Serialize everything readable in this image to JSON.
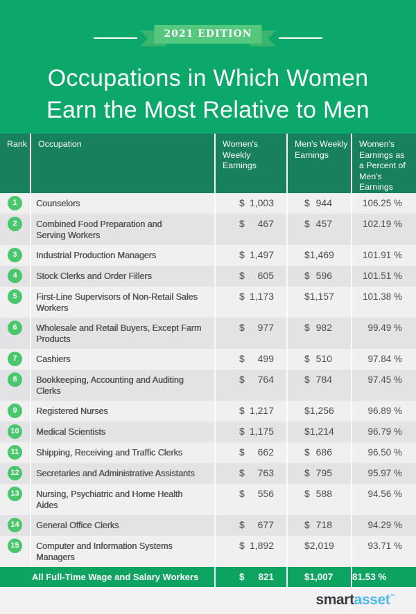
{
  "colors": {
    "background_green": "#0ca76a",
    "table_header_green": "#17805d",
    "summary_row_green": "#0da361",
    "rank_badge_green": "#4ac66d",
    "ribbon_box_green": "#56c87e",
    "ribbon_tail_green": "#3bb56e",
    "row_light_gray": "#f0f0f1",
    "row_dark_gray": "#e3e3e5",
    "logo_blue": "#54b9ea"
  },
  "banner": {
    "edition_label": "2021 EDITION"
  },
  "title": {
    "line1": "Occupations in Which Women",
    "line2": "Earn the Most Relative to Men"
  },
  "table": {
    "currency_symbol": "$",
    "columns": {
      "rank": "Rank",
      "occupation": "Occupation",
      "women": "Women's Weekly\nEarnings",
      "men": "Men's Weekly\nEarnings",
      "percent": "Women's\nEarnings as\na Percent of\nMen's Earnings"
    },
    "rows": [
      {
        "rank": "1",
        "occupation": "Counselors",
        "women": "1,003",
        "men": "944",
        "percent": "106.25 %"
      },
      {
        "rank": "2",
        "occupation": "Combined Food Preparation and\nServing Workers",
        "women": "467",
        "men": "457",
        "percent": "102.19 %"
      },
      {
        "rank": "3",
        "occupation": "Industrial Production Managers",
        "women": "1,497",
        "men": "1,469",
        "percent": "101.91 %"
      },
      {
        "rank": "4",
        "occupation": "Stock Clerks and Order Fillers",
        "women": "605",
        "men": "596",
        "percent": "101.51 %"
      },
      {
        "rank": "5",
        "occupation": "First-Line Supervisors of Non-Retail Sales\nWorkers",
        "women": "1,173",
        "men": "1,157",
        "percent": "101.38 %"
      },
      {
        "rank": "6",
        "occupation": "Wholesale and Retail Buyers, Except Farm\nProducts",
        "women": "977",
        "men": "982",
        "percent": "99.49 %"
      },
      {
        "rank": "7",
        "occupation": "Cashiers",
        "women": "499",
        "men": "510",
        "percent": "97.84 %"
      },
      {
        "rank": "8",
        "occupation": "Bookkeeping, Accounting and Auditing\nClerks",
        "women": "764",
        "men": "784",
        "percent": "97.45 %"
      },
      {
        "rank": "9",
        "occupation": "Registered Nurses",
        "women": "1,217",
        "men": "1,256",
        "percent": "96.89 %"
      },
      {
        "rank": "10",
        "occupation": "Medical Scientists",
        "women": "1,175",
        "men": "1,214",
        "percent": "96.79 %"
      },
      {
        "rank": "11",
        "occupation": "Shipping, Receiving and Traffic Clerks",
        "women": "662",
        "men": "686",
        "percent": "96.50 %"
      },
      {
        "rank": "12",
        "occupation": "Secretaries and Administrative Assistants",
        "women": "763",
        "men": "795",
        "percent": "95.97 %"
      },
      {
        "rank": "13",
        "occupation": "Nursing, Psychiatric and Home Health\nAides",
        "women": "556",
        "men": "588",
        "percent": "94.56 %"
      },
      {
        "rank": "14",
        "occupation": "General Office Clerks",
        "women": "677",
        "men": "718",
        "percent": "94.29 %"
      },
      {
        "rank": "15",
        "occupation": "Computer and Information Systems\nManagers",
        "women": "1,892",
        "men": "2,019",
        "percent": "93.71 %"
      }
    ],
    "footer": {
      "label": "All Full-Time Wage and Salary Workers",
      "women": "821",
      "men": "1,007",
      "percent": "81.53 %"
    }
  },
  "logo": {
    "smart": "smart",
    "asset": "asset",
    "trademark": "™"
  },
  "chart_data": {
    "type": "table",
    "title": "Occupations in Which Women Earn the Most Relative to Men",
    "subtitle": "2021 EDITION",
    "columns": [
      "Rank",
      "Occupation",
      "Women's Weekly Earnings ($)",
      "Men's Weekly Earnings ($)",
      "Women's Earnings as a Percent of Men's Earnings (%)"
    ],
    "rows": [
      [
        1,
        "Counselors",
        1003,
        944,
        106.25
      ],
      [
        2,
        "Combined Food Preparation and Serving Workers",
        467,
        457,
        102.19
      ],
      [
        3,
        "Industrial Production Managers",
        1497,
        1469,
        101.91
      ],
      [
        4,
        "Stock Clerks and Order Fillers",
        605,
        596,
        101.51
      ],
      [
        5,
        "First-Line Supervisors of Non-Retail Sales Workers",
        1173,
        1157,
        101.38
      ],
      [
        6,
        "Wholesale and Retail Buyers, Except Farm Products",
        977,
        982,
        99.49
      ],
      [
        7,
        "Cashiers",
        499,
        510,
        97.84
      ],
      [
        8,
        "Bookkeeping, Accounting and Auditing Clerks",
        764,
        784,
        97.45
      ],
      [
        9,
        "Registered Nurses",
        1217,
        1256,
        96.89
      ],
      [
        10,
        "Medical Scientists",
        1175,
        1214,
        96.79
      ],
      [
        11,
        "Shipping, Receiving and Traffic Clerks",
        662,
        686,
        96.5
      ],
      [
        12,
        "Secretaries and Administrative Assistants",
        763,
        795,
        95.97
      ],
      [
        13,
        "Nursing, Psychiatric and Home Health Aides",
        556,
        588,
        94.56
      ],
      [
        14,
        "General Office Clerks",
        677,
        718,
        94.29
      ],
      [
        15,
        "Computer and Information Systems Managers",
        1892,
        2019,
        93.71
      ]
    ],
    "summary_row": [
      "All Full-Time Wage and Salary Workers",
      821,
      1007,
      81.53
    ]
  }
}
